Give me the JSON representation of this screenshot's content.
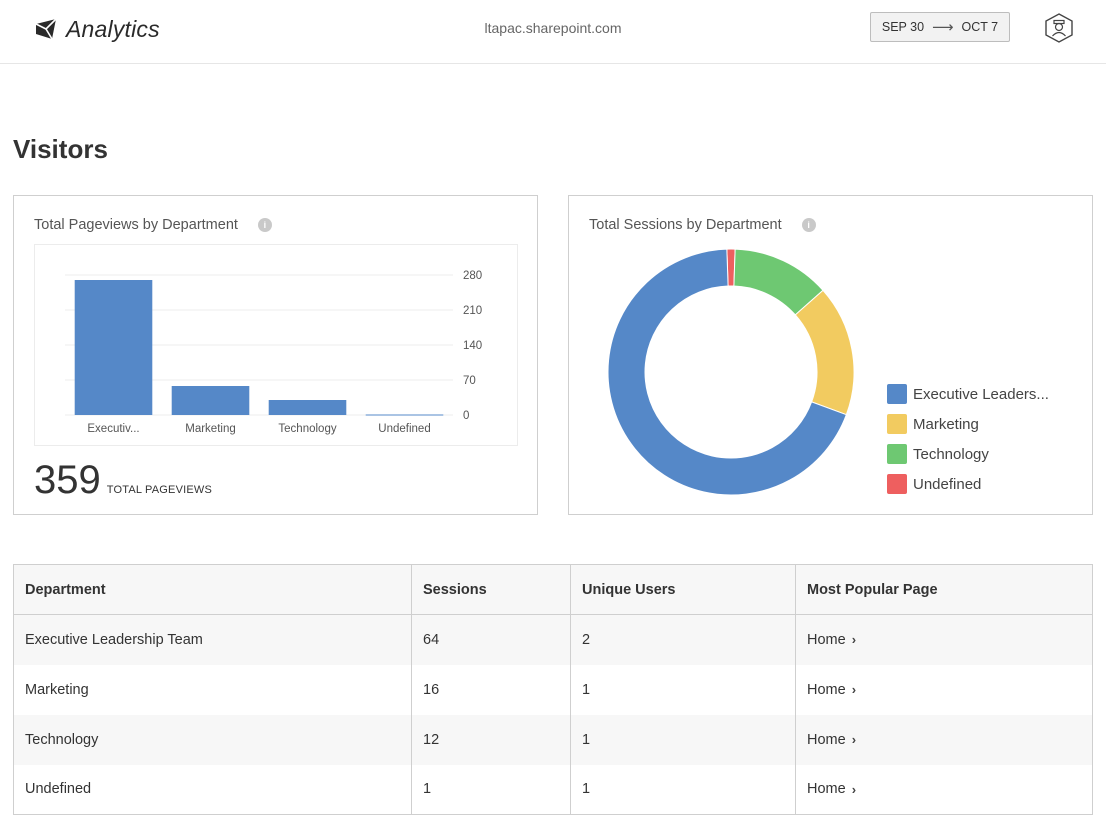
{
  "header": {
    "app_title": "Analytics",
    "site": "ltapac.sharepoint.com",
    "date_from": "SEP 30",
    "date_to": "OCT 7"
  },
  "page_title": "Visitors",
  "pageviews_card": {
    "title": "Total Pageviews by Department",
    "info": "i",
    "total_value": "359",
    "total_label": "TOTAL PAGEVIEWS"
  },
  "sessions_card": {
    "title": "Total Sessions by Department",
    "info": "i"
  },
  "chart_data": [
    {
      "type": "bar",
      "title": "Total Pageviews by Department",
      "categories": [
        "Executiv...",
        "Marketing",
        "Technology",
        "Undefined"
      ],
      "values": [
        270,
        58,
        30,
        1
      ],
      "yticks": [
        0,
        70,
        140,
        210,
        280
      ],
      "ylim": [
        0,
        280
      ],
      "y_axis_side": "right",
      "grid": true,
      "color": "#5588c8"
    },
    {
      "type": "pie",
      "title": "Total Sessions by Department",
      "donut": true,
      "categories": [
        "Executive Leaders...",
        "Marketing",
        "Technology",
        "Undefined"
      ],
      "values": [
        64,
        16,
        12,
        1
      ],
      "colors": [
        "#5588c8",
        "#f2cb60",
        "#6ec872",
        "#ee5f5f"
      ],
      "legend": "right"
    }
  ],
  "table": {
    "headers": [
      "Department",
      "Sessions",
      "Unique Users",
      "Most Popular Page"
    ],
    "rows": [
      {
        "department": "Executive Leadership Team",
        "sessions": "64",
        "users": "2",
        "page": "Home"
      },
      {
        "department": "Marketing",
        "sessions": "16",
        "users": "1",
        "page": "Home"
      },
      {
        "department": "Technology",
        "sessions": "12",
        "users": "1",
        "page": "Home"
      },
      {
        "department": "Undefined",
        "sessions": "1",
        "users": "1",
        "page": "Home"
      }
    ]
  },
  "icons": {
    "logo": "analytics-logo-icon",
    "user": "user-avatar-icon",
    "chevron": "chevron-right-icon"
  }
}
